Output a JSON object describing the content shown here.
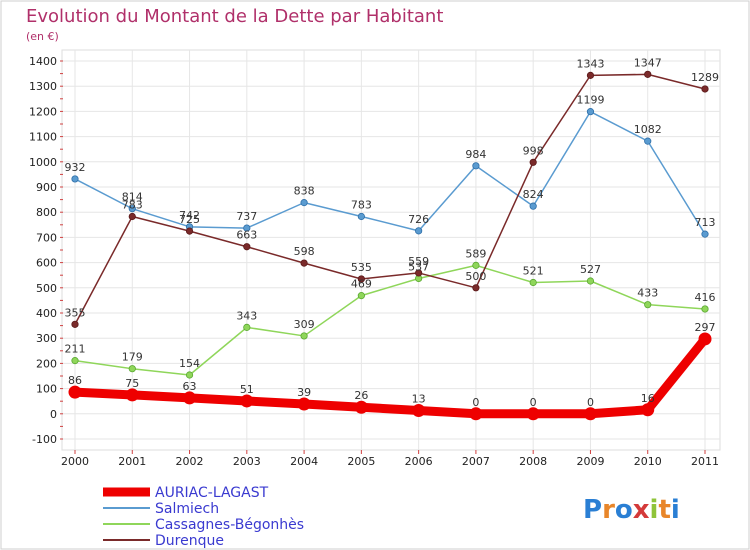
{
  "chart_data": {
    "type": "line",
    "title": "Evolution du Montant de la Dette par Habitant",
    "subtitle": "(en €)",
    "x": [
      "2000",
      "2001",
      "2002",
      "2003",
      "2004",
      "2005",
      "2006",
      "2007",
      "2008",
      "2009",
      "2010",
      "2011"
    ],
    "ylim": [
      -100,
      1400
    ],
    "yticks": [
      -100,
      0,
      100,
      200,
      300,
      400,
      500,
      600,
      700,
      800,
      900,
      1000,
      1100,
      1200,
      1300,
      1400
    ],
    "grid": true,
    "legend_position": "bottom-left",
    "series": [
      {
        "name": "AURIAC-LAGAST",
        "color": "#ee0000",
        "values": [
          86,
          75,
          63,
          51,
          39,
          26,
          13,
          0,
          0,
          0,
          16,
          297
        ]
      },
      {
        "name": "Salmiech",
        "color": "#5a9bd0",
        "values": [
          932,
          814,
          742,
          737,
          838,
          783,
          726,
          984,
          824,
          1199,
          1082,
          713
        ]
      },
      {
        "name": "Cassagnes-Bégonhès",
        "color": "#8fd65a",
        "values": [
          211,
          179,
          154,
          343,
          309,
          469,
          537,
          589,
          521,
          527,
          433,
          416
        ]
      },
      {
        "name": "Durenque",
        "color": "#7a2a2a",
        "values": [
          355,
          783,
          725,
          663,
          598,
          535,
          559,
          500,
          998,
          1343,
          1347,
          1289
        ]
      }
    ]
  },
  "brand": {
    "text": "Proxiti"
  }
}
